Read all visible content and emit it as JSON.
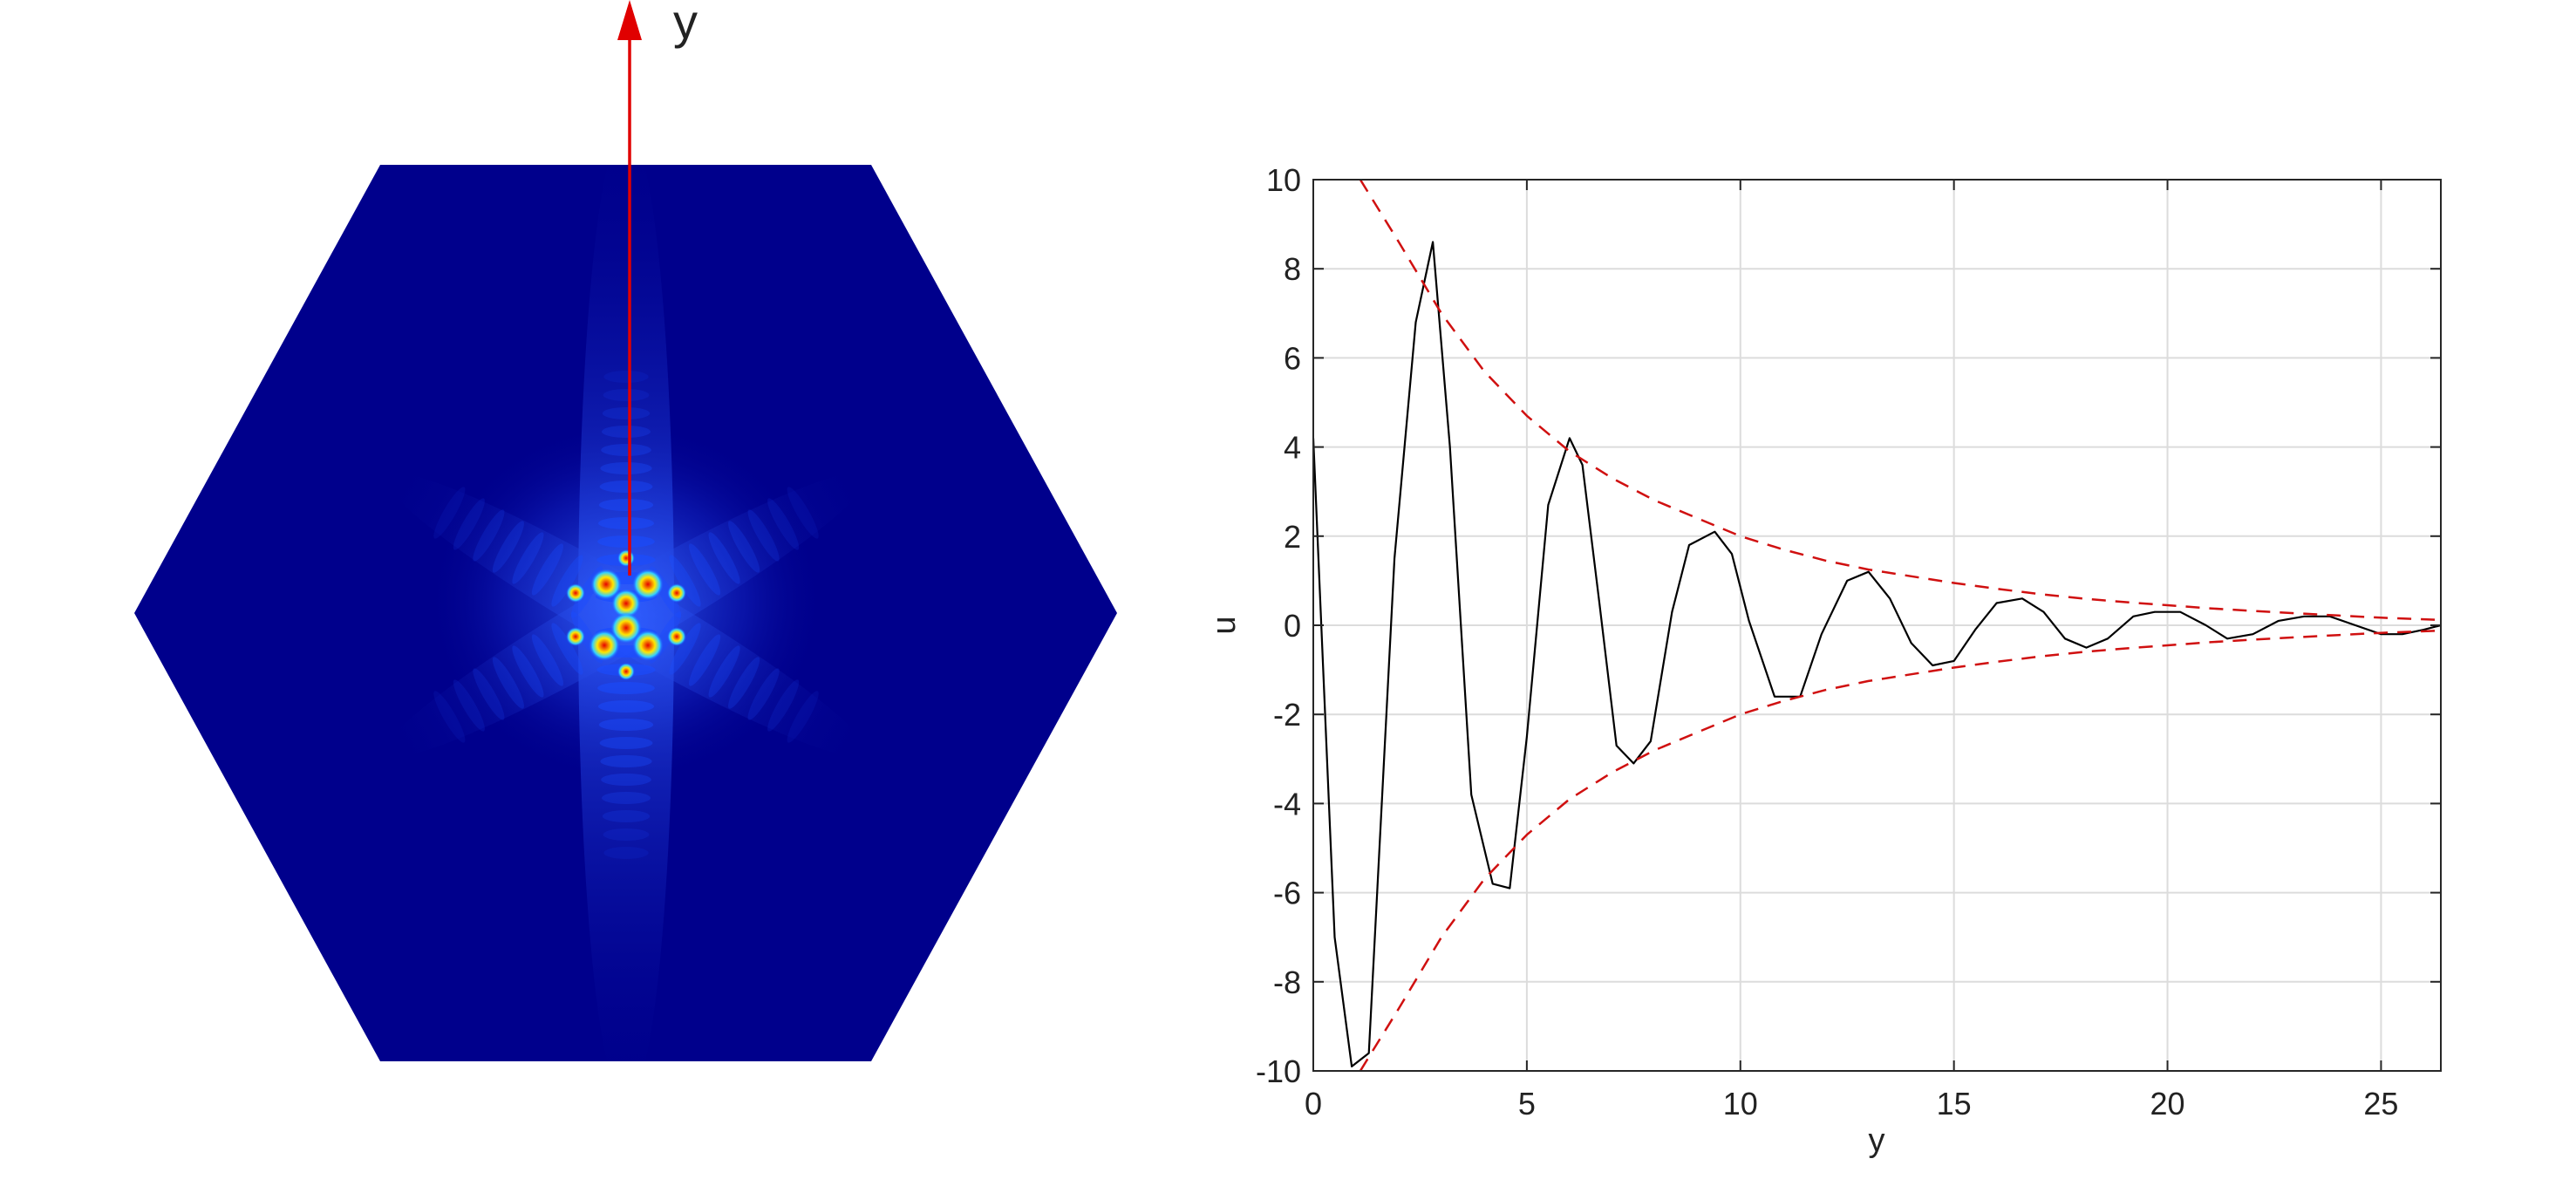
{
  "colors": {
    "field_background": "#00008c",
    "field_glow": "#1a4cff",
    "field_mid": "#33d1ff",
    "field_warm": "#ffe600",
    "field_hot": "#e60000",
    "arrow": "#e00000",
    "curve": "#000000",
    "envelope": "#d01010",
    "grid": "#dcdcdc",
    "axes": "#262626"
  },
  "left_panel": {
    "type": "heatmap",
    "arrow_label": "y"
  },
  "chart_data": {
    "type": "line",
    "xlabel": "y",
    "ylabel": "u",
    "xlim": [
      0,
      26.4
    ],
    "ylim": [
      -10,
      10
    ],
    "xticks": [
      0,
      5,
      10,
      15,
      20,
      25
    ],
    "yticks": [
      -10,
      -8,
      -6,
      -4,
      -2,
      0,
      2,
      4,
      6,
      8,
      10
    ],
    "grid": true,
    "series": [
      {
        "style": "solid",
        "color": "#000000",
        "x": [
          0,
          0.5,
          0.9,
          1.3,
          1.9,
          2.4,
          2.8,
          3.2,
          3.7,
          4.2,
          4.6,
          5.0,
          5.5,
          6.0,
          6.3,
          6.7,
          7.1,
          7.5,
          7.9,
          8.4,
          8.8,
          9.4,
          9.8,
          10.2,
          10.8,
          11.4,
          11.9,
          12.5,
          13.0,
          13.5,
          14.0,
          14.5,
          15.0,
          15.5,
          16.0,
          16.6,
          17.1,
          17.6,
          18.1,
          18.6,
          19.2,
          19.7,
          20.3,
          20.9,
          21.4,
          22.0,
          22.6,
          23.2,
          23.8,
          24.4,
          25.0,
          25.5,
          26.0,
          26.4
        ],
        "y": [
          4.2,
          -7.0,
          -9.9,
          -9.6,
          1.5,
          6.8,
          8.6,
          4.0,
          -3.8,
          -5.8,
          -5.9,
          -2.5,
          2.7,
          4.2,
          3.6,
          0.5,
          -2.7,
          -3.1,
          -2.6,
          0.3,
          1.8,
          2.1,
          1.6,
          0.1,
          -1.6,
          -1.6,
          -0.2,
          1.0,
          1.2,
          0.6,
          -0.4,
          -0.9,
          -0.8,
          -0.1,
          0.5,
          0.6,
          0.3,
          -0.3,
          -0.5,
          -0.3,
          0.2,
          0.3,
          0.3,
          0.0,
          -0.3,
          -0.2,
          0.1,
          0.2,
          0.2,
          0.0,
          -0.2,
          -0.2,
          -0.1,
          0.0
        ]
      },
      {
        "style": "dashed",
        "color": "#d01010",
        "x": [
          1.1,
          2.0,
          3.0,
          4.0,
          5.0,
          6.0,
          7.0,
          8.0,
          9.0,
          10.0,
          11.0,
          12.0,
          13.0,
          14.0,
          15.0,
          16.0,
          17.0,
          18.0,
          19.0,
          20.0,
          21.0,
          22.0,
          23.0,
          24.0,
          25.0,
          26.4
        ],
        "y": [
          10.0,
          8.6,
          7.0,
          5.7,
          4.7,
          3.9,
          3.3,
          2.8,
          2.4,
          2.0,
          1.7,
          1.45,
          1.25,
          1.1,
          0.95,
          0.82,
          0.7,
          0.6,
          0.52,
          0.45,
          0.38,
          0.32,
          0.27,
          0.22,
          0.17,
          0.12
        ]
      },
      {
        "style": "dashed",
        "color": "#d01010",
        "x": [
          1.1,
          2.0,
          3.0,
          4.0,
          5.0,
          6.0,
          7.0,
          8.0,
          9.0,
          10.0,
          11.0,
          12.0,
          13.0,
          14.0,
          15.0,
          16.0,
          17.0,
          18.0,
          19.0,
          20.0,
          21.0,
          22.0,
          23.0,
          24.0,
          25.0,
          26.4
        ],
        "y": [
          -10.0,
          -8.6,
          -7.0,
          -5.7,
          -4.7,
          -3.9,
          -3.3,
          -2.8,
          -2.4,
          -2.0,
          -1.7,
          -1.45,
          -1.25,
          -1.1,
          -0.95,
          -0.82,
          -0.7,
          -0.6,
          -0.52,
          -0.45,
          -0.38,
          -0.32,
          -0.27,
          -0.22,
          -0.17,
          -0.12
        ]
      }
    ]
  }
}
